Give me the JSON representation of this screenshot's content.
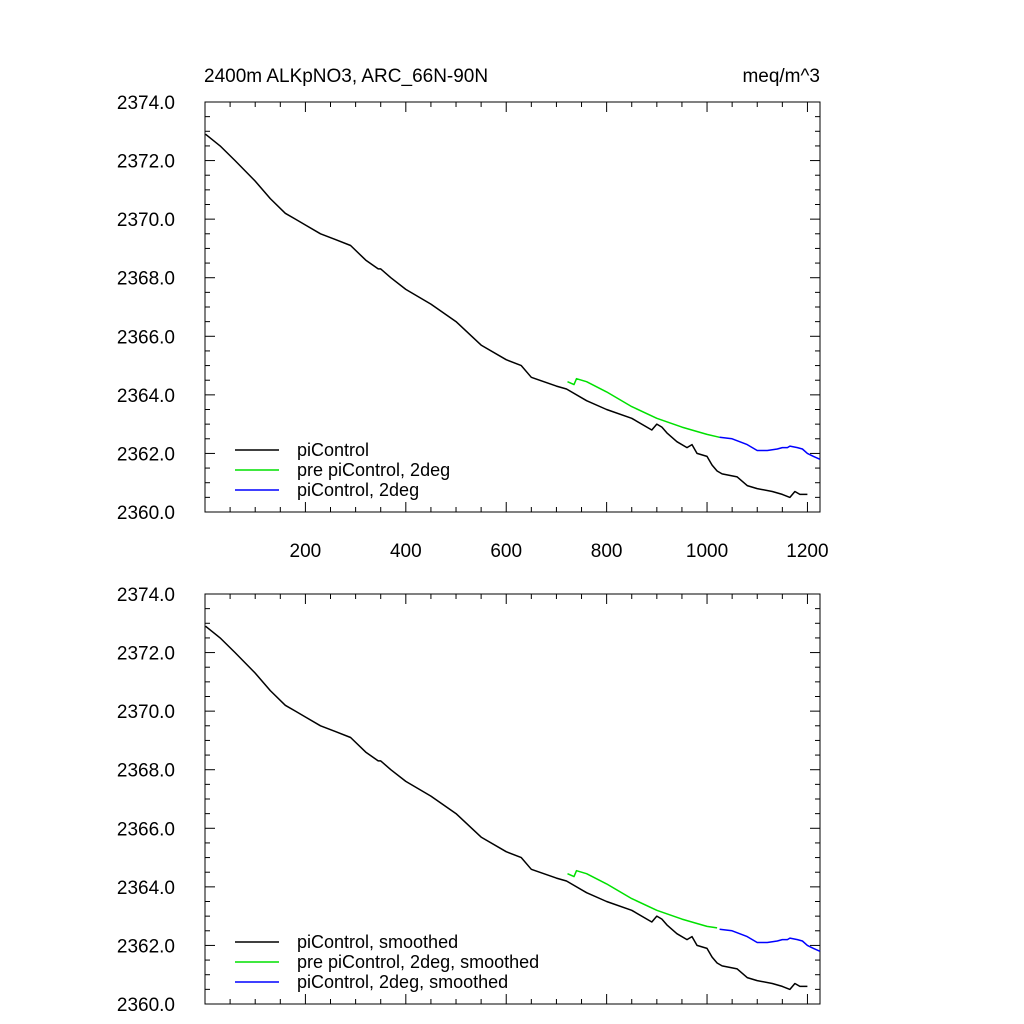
{
  "chart_data": [
    {
      "type": "line",
      "title": "2400m ALKpNO3, ARC_66N-90N",
      "units": "meq/m^3",
      "xlim": [
        0,
        1225
      ],
      "ylim": [
        2360.0,
        2374.0
      ],
      "x_ticks": [
        200,
        400,
        600,
        800,
        1000,
        1200
      ],
      "x_tick_labels": [
        "200",
        "400",
        "600",
        "800",
        "1000",
        "1200"
      ],
      "y_ticks": [
        2360.0,
        2362.0,
        2364.0,
        2366.0,
        2368.0,
        2370.0,
        2372.0,
        2374.0
      ],
      "y_tick_labels": [
        "2360.0",
        "2362.0",
        "2364.0",
        "2366.0",
        "2368.0",
        "2370.0",
        "2372.0",
        "2374.0"
      ],
      "grid": false,
      "legend_position": "bottom-left",
      "series": [
        {
          "name": "piControl",
          "color": "#000000",
          "x": [
            1,
            30,
            60,
            100,
            130,
            160,
            180,
            200,
            230,
            260,
            290,
            320,
            345,
            350,
            370,
            400,
            450,
            500,
            550,
            600,
            630,
            650,
            700,
            720,
            760,
            800,
            850,
            890,
            900,
            910,
            920,
            940,
            960,
            970,
            980,
            1000,
            1010,
            1020,
            1030,
            1060,
            1080,
            1100,
            1130,
            1150,
            1165,
            1175,
            1185,
            1200
          ],
          "y": [
            2372.9,
            2372.5,
            2372.0,
            2371.3,
            2370.7,
            2370.2,
            2370.0,
            2369.8,
            2369.5,
            2369.3,
            2369.1,
            2368.6,
            2368.3,
            2368.3,
            2368.0,
            2367.6,
            2367.1,
            2366.5,
            2365.7,
            2365.2,
            2365.0,
            2364.6,
            2364.3,
            2364.2,
            2363.8,
            2363.5,
            2363.2,
            2362.8,
            2363.0,
            2362.9,
            2362.7,
            2362.4,
            2362.2,
            2362.3,
            2362.0,
            2361.9,
            2361.6,
            2361.4,
            2361.3,
            2361.2,
            2360.9,
            2360.8,
            2360.7,
            2360.6,
            2360.5,
            2360.7,
            2360.6,
            2360.6
          ]
        },
        {
          "name": "pre piControl, 2deg",
          "color": "#00e000",
          "x": [
            722,
            735,
            740,
            760,
            800,
            850,
            900,
            950,
            980,
            1000,
            1025
          ],
          "y": [
            2364.45,
            2364.35,
            2364.55,
            2364.45,
            2364.1,
            2363.6,
            2363.2,
            2362.9,
            2362.75,
            2362.65,
            2362.55
          ]
        },
        {
          "name": "piControl, 2deg",
          "color": "#0000ff",
          "x": [
            1025,
            1050,
            1080,
            1100,
            1120,
            1140,
            1150,
            1160,
            1165,
            1180,
            1190,
            1200,
            1212,
            1225
          ],
          "y": [
            2362.55,
            2362.5,
            2362.3,
            2362.1,
            2362.1,
            2362.15,
            2362.2,
            2362.2,
            2362.25,
            2362.2,
            2362.15,
            2362.0,
            2361.9,
            2361.8
          ]
        }
      ]
    },
    {
      "type": "line",
      "xlim": [
        0,
        1225
      ],
      "ylim": [
        2360.0,
        2374.0
      ],
      "x_ticks": [
        200,
        400,
        600,
        800,
        1000,
        1200
      ],
      "y_ticks": [
        2360.0,
        2362.0,
        2364.0,
        2366.0,
        2368.0,
        2370.0,
        2372.0,
        2374.0
      ],
      "y_tick_labels": [
        "2360.0",
        "2362.0",
        "2364.0",
        "2366.0",
        "2368.0",
        "2370.0",
        "2372.0",
        "2374.0"
      ],
      "grid": false,
      "legend_position": "bottom-left",
      "series": [
        {
          "name": "piControl, smoothed",
          "color": "#000000",
          "x": [
            1,
            30,
            60,
            100,
            130,
            160,
            180,
            200,
            230,
            260,
            290,
            320,
            345,
            350,
            370,
            400,
            450,
            500,
            550,
            600,
            630,
            650,
            700,
            720,
            760,
            800,
            850,
            890,
            900,
            910,
            920,
            940,
            960,
            970,
            980,
            1000,
            1010,
            1020,
            1030,
            1060,
            1080,
            1100,
            1130,
            1150,
            1165,
            1175,
            1185,
            1200
          ],
          "y": [
            2372.9,
            2372.5,
            2372.0,
            2371.3,
            2370.7,
            2370.2,
            2370.0,
            2369.8,
            2369.5,
            2369.3,
            2369.1,
            2368.6,
            2368.3,
            2368.3,
            2368.0,
            2367.6,
            2367.1,
            2366.5,
            2365.7,
            2365.2,
            2365.0,
            2364.6,
            2364.3,
            2364.2,
            2363.8,
            2363.5,
            2363.2,
            2362.8,
            2363.0,
            2362.9,
            2362.7,
            2362.4,
            2362.2,
            2362.3,
            2362.0,
            2361.9,
            2361.6,
            2361.4,
            2361.3,
            2361.2,
            2360.9,
            2360.8,
            2360.7,
            2360.6,
            2360.5,
            2360.7,
            2360.6,
            2360.6
          ]
        },
        {
          "name": "pre piControl, 2deg, smoothed",
          "color": "#00e000",
          "x": [
            722,
            735,
            740,
            760,
            800,
            850,
            900,
            950,
            980,
            1000,
            1020
          ],
          "y": [
            2364.45,
            2364.35,
            2364.55,
            2364.45,
            2364.1,
            2363.6,
            2363.2,
            2362.9,
            2362.75,
            2362.65,
            2362.6
          ]
        },
        {
          "name": "piControl, 2deg, smoothed",
          "color": "#0000ff",
          "x": [
            1025,
            1050,
            1080,
            1100,
            1120,
            1140,
            1150,
            1160,
            1165,
            1180,
            1190,
            1200,
            1212,
            1225
          ],
          "y": [
            2362.55,
            2362.5,
            2362.3,
            2362.1,
            2362.1,
            2362.15,
            2362.2,
            2362.2,
            2362.25,
            2362.2,
            2362.15,
            2362.0,
            2361.9,
            2361.8
          ]
        }
      ]
    }
  ]
}
